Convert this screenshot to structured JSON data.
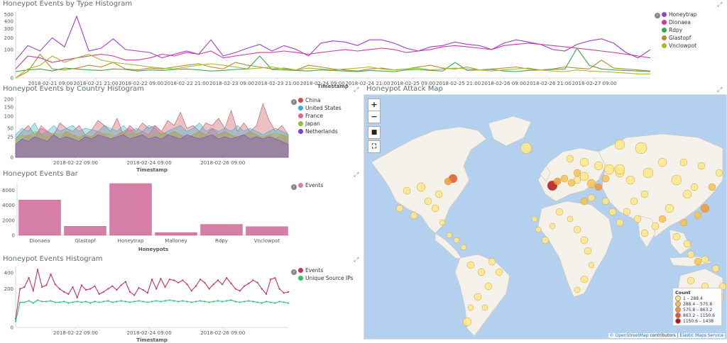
{
  "panels": {
    "type_hist": {
      "title": "Honeypot Events by Type Histogram",
      "xlabel": "Timestamp"
    },
    "country_hist": {
      "title": "Honeypot Events by Country Histogram",
      "xlabel": "Timestamp"
    },
    "bar": {
      "title": "Honeypot Events Bar",
      "xlabel": "Honeypots"
    },
    "events_hist": {
      "title": "Honeypot Events Histogram",
      "xlabel": "Timestamp"
    },
    "map": {
      "title": "Honeypot Attack Map"
    }
  },
  "map": {
    "controls": [
      "+",
      "−",
      "■",
      "⛶"
    ],
    "legend_title": "Count",
    "legend": [
      {
        "label": "1 – 288.4",
        "color": "#fde98a"
      },
      {
        "label": "288.4 – 575.8",
        "color": "#f6c350"
      },
      {
        "label": "575.8 – 863.2",
        "color": "#ee9a3b"
      },
      {
        "label": "863.2 – 1150.6",
        "color": "#e2552e"
      },
      {
        "label": "1150.6 – 1438",
        "color": "#b5121b"
      }
    ],
    "attribution_link": "© OpenStreetMap",
    "attribution_text": " contributors | ",
    "attribution_link2": "Elastic Maps Service"
  },
  "chart_data": [
    {
      "type": "line",
      "title": "Honeypot Events by Type Histogram",
      "xlabel": "Timestamp",
      "ylabel": "",
      "x_ticks": [
        "2018-02-21 09:00",
        "2018-02-21 21:00",
        "2018-02-22 09:00",
        "2018-02-22 21:00",
        "2018-02-23 09:00",
        "2018-02-23 21:00",
        "2018-02-24 09:00",
        "2018-02-24 21:00",
        "2018-02-25 09:00",
        "2018-02-25 21:00",
        "2018-02-26 09:00",
        "2018-02-26 21:00",
        "2018-02-27 09:00"
      ],
      "y_ticks": [
        "0",
        "100",
        "200",
        "300",
        "400",
        "500"
      ],
      "scale": "sqrt",
      "ylim": [
        0,
        550
      ],
      "series": [
        {
          "name": "Honeytrap",
          "color": "#9b3fcf",
          "values": [
            40,
            130,
            90,
            200,
            120,
            470,
            90,
            110,
            190,
            100,
            90,
            80,
            50,
            70,
            90,
            70,
            180,
            60,
            80,
            110,
            140,
            90,
            130,
            100,
            60,
            150,
            170,
            160,
            130,
            180,
            180,
            150,
            110,
            90,
            120,
            130,
            160,
            140,
            130,
            100,
            150,
            180,
            160,
            140,
            100,
            90,
            140,
            170,
            190,
            150,
            80,
            50,
            100
          ]
        },
        {
          "name": "Dionaea",
          "color": "#cf3a9b",
          "values": [
            10,
            60,
            50,
            30,
            40,
            50,
            60,
            70,
            60,
            40,
            40,
            50,
            70,
            60,
            80,
            70,
            90,
            50,
            60,
            70,
            80,
            80,
            90,
            80,
            70,
            80,
            90,
            100,
            90,
            100,
            110,
            100,
            80,
            90,
            100,
            120,
            130,
            120,
            110,
            100,
            130,
            140,
            150,
            140,
            130,
            120,
            110,
            100,
            90,
            80,
            70,
            60,
            50
          ]
        },
        {
          "name": "Rdpy",
          "color": "#3aa84a",
          "values": [
            5,
            8,
            10,
            6,
            12,
            10,
            8,
            7,
            10,
            9,
            6,
            8,
            7,
            9,
            10,
            8,
            6,
            7,
            9,
            10,
            60,
            9,
            8,
            7,
            6,
            8,
            7,
            6,
            5,
            7,
            6,
            5,
            8,
            9,
            7,
            6,
            30,
            7,
            8,
            9,
            6,
            5,
            7,
            8,
            9,
            10,
            110,
            20,
            10,
            8,
            7,
            6,
            5
          ]
        },
        {
          "name": "Glastopf",
          "color": "#b58a2e",
          "values": [
            0,
            5,
            70,
            10,
            8,
            12,
            20,
            15,
            30,
            10,
            8,
            12,
            10,
            15,
            20,
            25,
            15,
            10,
            30,
            20,
            15,
            10,
            12,
            8,
            20,
            15,
            10,
            8,
            6,
            10,
            12,
            8,
            10,
            15,
            20,
            12,
            10,
            15,
            8,
            10,
            12,
            15,
            10,
            8,
            10,
            15,
            12,
            10,
            40,
            12,
            10,
            8,
            6
          ]
        },
        {
          "name": "Vnclowpot",
          "color": "#a8b82c",
          "values": [
            0,
            10,
            20,
            60,
            30,
            50,
            70,
            40,
            30,
            25,
            20,
            15,
            12,
            10,
            15,
            20,
            25,
            20,
            15,
            10,
            12,
            15,
            10,
            8,
            12,
            10,
            8,
            10,
            12,
            15,
            10,
            8,
            10,
            12,
            8,
            10,
            12,
            10,
            8,
            6,
            8,
            10,
            12,
            8,
            6,
            5,
            8,
            6,
            5,
            4,
            3,
            2,
            2
          ]
        }
      ]
    },
    {
      "type": "area",
      "title": "Honeypot Events by Country Histogram",
      "xlabel": "Timestamp",
      "x_ticks": [
        "2018-02-22 09:00",
        "2018-02-24 09:00",
        "2018-02-26 09:00"
      ],
      "y_ticks": [
        "0",
        "25",
        "50",
        "100",
        "150",
        "200"
      ],
      "scale": "sqrt",
      "ylim": [
        0,
        220
      ],
      "series": [
        {
          "name": "China",
          "color": "#c94d57",
          "values": [
            20,
            40,
            60,
            30,
            50,
            40,
            30,
            70,
            50,
            40,
            60,
            30,
            45,
            80,
            60,
            40,
            90,
            30,
            60,
            40,
            70,
            50,
            60,
            40,
            80,
            60,
            120,
            50,
            60,
            40,
            70,
            60,
            90,
            50,
            130,
            40,
            70,
            40,
            60,
            170,
            80,
            40,
            60,
            30
          ]
        },
        {
          "name": "United States",
          "color": "#3ab0c8",
          "values": [
            30,
            50,
            40,
            70,
            30,
            40,
            60,
            40,
            50,
            60,
            40,
            50,
            45,
            40,
            60,
            50,
            40,
            60,
            40,
            50,
            40,
            60,
            50,
            30,
            40,
            50,
            60,
            40,
            50,
            70,
            40,
            50,
            40,
            50,
            40,
            60,
            40,
            50,
            40,
            30,
            40,
            50,
            40,
            30
          ]
        },
        {
          "name": "France",
          "color": "#d96a8a",
          "values": [
            10,
            20,
            30,
            20,
            60,
            40,
            30,
            20,
            40,
            30,
            20,
            30,
            25,
            40,
            30,
            20,
            30,
            40,
            50,
            30,
            40,
            30,
            60,
            40,
            30,
            40,
            30,
            20,
            30,
            40,
            30,
            50,
            30,
            40,
            30,
            20,
            30,
            40,
            30,
            20,
            30,
            20,
            30,
            20
          ]
        },
        {
          "name": "Japan",
          "color": "#8fbd3e",
          "values": [
            20,
            30,
            25,
            40,
            30,
            25,
            35,
            30,
            40,
            30,
            25,
            30,
            25,
            30,
            35,
            30,
            25,
            40,
            30,
            35,
            30,
            25,
            30,
            35,
            30,
            40,
            30,
            25,
            30,
            35,
            30,
            25,
            30,
            35,
            30,
            25,
            30,
            35,
            30,
            25,
            30,
            35,
            30,
            25
          ]
        },
        {
          "name": "Netherlands",
          "color": "#7a3fcf",
          "values": [
            10,
            20,
            15,
            25,
            20,
            15,
            30,
            20,
            25,
            20,
            15,
            25,
            20,
            30,
            25,
            20,
            25,
            30,
            20,
            25,
            30,
            20,
            25,
            20,
            30,
            25,
            20,
            30,
            25,
            20,
            25,
            30,
            20,
            25,
            20,
            25,
            30,
            20,
            25,
            20,
            25,
            20,
            15,
            10
          ]
        }
      ]
    },
    {
      "type": "bar",
      "title": "Honeypot Events Bar",
      "xlabel": "Honeypots",
      "categories": [
        "Dionaea",
        "Glastopf",
        "Honeytrap",
        "Malloney",
        "Rdpy",
        "Vnclowpot"
      ],
      "y_ticks": [
        "0",
        "2000",
        "4000",
        "6000"
      ],
      "ylim": [
        0,
        7000
      ],
      "series": [
        {
          "name": "Events",
          "color": "#d67fa6",
          "values": [
            4700,
            1200,
            6900,
            350,
            1450,
            1150
          ]
        }
      ]
    },
    {
      "type": "line",
      "title": "Honeypot Events Histogram",
      "xlabel": "Timestamp",
      "x_ticks": [
        "2018-02-22 09:00",
        "2018-02-24 09:00",
        "2018-02-26 09:00"
      ],
      "y_ticks": [
        "0",
        "200",
        "400"
      ],
      "scale": "sqrt",
      "ylim": [
        0,
        500
      ],
      "series": [
        {
          "name": "Events",
          "color": "#c2336a",
          "values": [
            10,
            200,
            220,
            330,
            180,
            450,
            220,
            240,
            380,
            250,
            200,
            170,
            150,
            220,
            120,
            240,
            190,
            200,
            230,
            150,
            170,
            200,
            230,
            190,
            240,
            280,
            170,
            140,
            210,
            190,
            160,
            310,
            200,
            320,
            220,
            310,
            300,
            270,
            300,
            250,
            180,
            230,
            310,
            270,
            200,
            250,
            300,
            250,
            330,
            260,
            200,
            180,
            230,
            260,
            300,
            270,
            200,
            150,
            310,
            330,
            200,
            160,
            170
          ]
        },
        {
          "name": "Unique Source IPs",
          "color": "#2fbf71",
          "values": [
            5,
            85,
            85,
            95,
            80,
            100,
            90,
            90,
            95,
            85,
            85,
            90,
            80,
            85,
            90,
            85,
            90,
            80,
            90,
            85,
            90,
            95,
            85,
            90,
            95,
            90,
            85,
            90,
            95,
            90,
            85,
            90,
            95,
            90,
            95,
            100,
            95,
            90,
            95,
            90,
            85,
            90,
            95,
            90,
            85,
            90,
            95,
            90,
            95,
            100,
            90,
            85,
            90,
            95,
            90,
            85,
            80,
            90,
            85,
            80,
            90,
            85,
            80
          ]
        }
      ]
    }
  ]
}
